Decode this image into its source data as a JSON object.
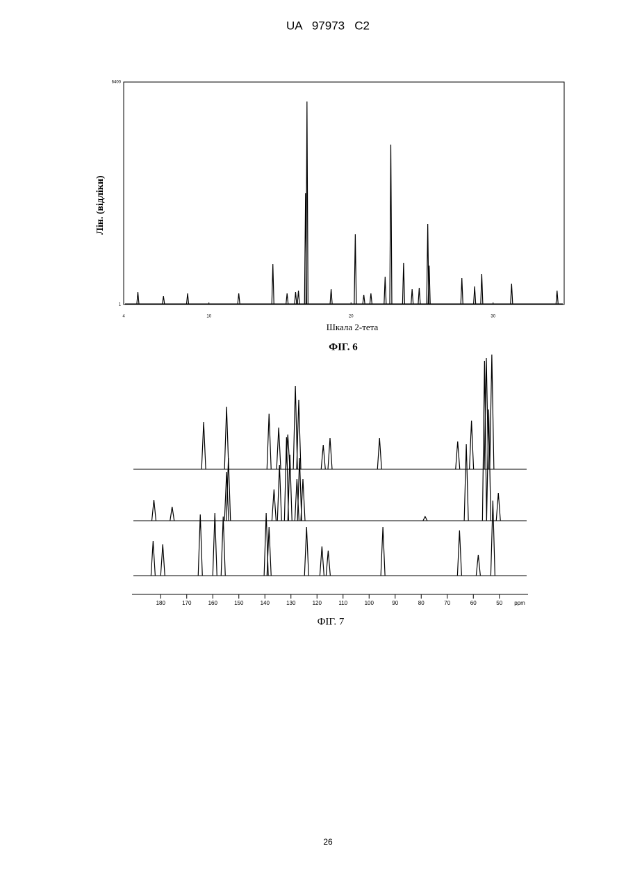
{
  "header": "UA   97973   C2",
  "chart_data": [
    {
      "type": "spectrum",
      "x_label": "Шкала 2-тета",
      "y_label": "Лін. (відліки)",
      "caption": "ФІГ. 6",
      "xlim": [
        4,
        35
      ],
      "xticks": [
        4,
        10,
        20,
        30
      ],
      "ylim": [
        1,
        6400
      ],
      "yticks": [
        1,
        6400
      ],
      "series": [
        {
          "color": "#000000",
          "x": [
            5.0,
            6.8,
            8.5,
            12.1,
            14.5,
            15.5,
            16.1,
            16.3,
            16.8,
            16.9,
            18.6,
            20.3,
            20.9,
            21.4,
            22.4,
            22.8,
            23.7,
            24.3,
            24.8,
            25.4,
            25.5,
            27.8,
            28.7,
            29.2,
            31.3,
            34.5
          ],
          "values": [
            360,
            240,
            320,
            320,
            1160,
            320,
            360,
            400,
            3200,
            5840,
            440,
            2020,
            280,
            320,
            800,
            4600,
            1200,
            440,
            480,
            2320,
            1120,
            760,
            520,
            880,
            600,
            400
          ]
        }
      ]
    },
    {
      "type": "spectrum",
      "caption": "ФІГ. 7",
      "x_unit": "ppm",
      "xlim": [
        191,
        39
      ],
      "xticks": [
        180,
        170,
        160,
        150,
        140,
        130,
        120,
        110,
        100,
        90,
        80,
        70,
        60,
        50
      ],
      "series": [
        {
          "color": "#000000",
          "x": [
            163.5,
            154.7,
            138.4,
            134.7,
            131.2,
            128.3,
            127.0,
            117.6,
            115.0,
            96.0,
            66.0,
            60.7,
            55.0,
            52.9
          ],
          "values": [
            68,
            90,
            80,
            60,
            50,
            120,
            100,
            35,
            45,
            45,
            40,
            70,
            160,
            165
          ]
        },
        {
          "color": "#000000",
          "x": [
            182.6,
            175.6,
            154.7,
            154.0,
            136.5,
            134.4,
            131.7,
            130.4,
            127.7,
            126.7,
            125.4,
            78.5,
            62.7,
            55.7,
            54.1,
            50.4
          ],
          "values": [
            30,
            20,
            70,
            90,
            45,
            80,
            120,
            95,
            60,
            90,
            60,
            6,
            110,
            230,
            160,
            40
          ]
        },
        {
          "color": "#000000",
          "x": [
            182.9,
            179.2,
            164.8,
            159.2,
            156.0,
            139.5,
            138.4,
            124.0,
            118.1,
            115.7,
            94.7,
            65.3,
            58.1,
            52.5
          ],
          "values": [
            50,
            45,
            88,
            90,
            85,
            90,
            70,
            70,
            42,
            36,
            70,
            65,
            30,
            108
          ]
        }
      ]
    }
  ],
  "page_number": "26"
}
